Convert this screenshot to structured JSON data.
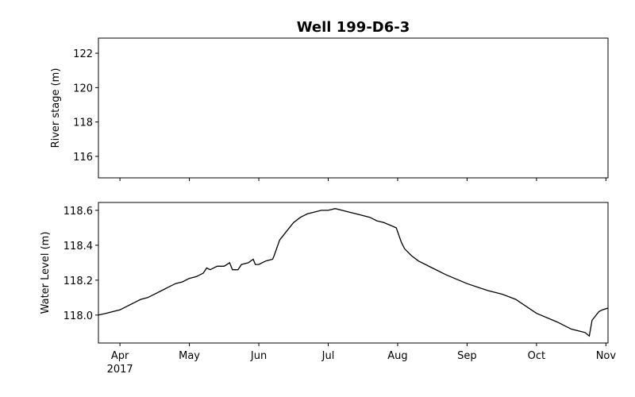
{
  "chart_data": [
    {
      "type": "line",
      "title": "Well 199-D6-3",
      "ylabel": "River stage (m)",
      "xlim": [
        3.69,
        11.03
      ],
      "xticks": [
        4,
        5,
        6,
        7,
        8,
        9,
        10,
        11
      ],
      "ylim": [
        114.75,
        122.88
      ],
      "yticks": [
        116,
        118,
        120,
        122
      ]
    },
    {
      "type": "line",
      "ylabel": "Water Level (m)",
      "color": "#000000",
      "xlim": [
        3.69,
        11.03
      ],
      "xticks": [
        {
          "value": 4,
          "label": "Apr\n2017"
        },
        {
          "value": 5,
          "label": "May"
        },
        {
          "value": 6,
          "label": "Jun"
        },
        {
          "value": 7,
          "label": "Jul"
        },
        {
          "value": 8,
          "label": "Aug"
        },
        {
          "value": 9,
          "label": "Sep"
        },
        {
          "value": 10,
          "label": "Oct"
        },
        {
          "value": 11,
          "label": "Nov"
        }
      ],
      "ylim": [
        117.84,
        118.645
      ],
      "yticks": [
        {
          "value": 118,
          "label": "118.0"
        },
        118.2,
        118.4,
        118.6
      ],
      "x": [
        3.69,
        3.8,
        3.9,
        4.0,
        4.1,
        4.2,
        4.3,
        4.4,
        4.5,
        4.6,
        4.7,
        4.8,
        4.9,
        5.0,
        5.1,
        5.2,
        5.25,
        5.3,
        5.4,
        5.5,
        5.58,
        5.62,
        5.7,
        5.75,
        5.85,
        5.92,
        5.95,
        6.0,
        6.1,
        6.2,
        6.22,
        6.3,
        6.4,
        6.5,
        6.6,
        6.7,
        6.8,
        6.9,
        7.0,
        7.1,
        7.2,
        7.3,
        7.4,
        7.5,
        7.6,
        7.7,
        7.8,
        7.98,
        8.05,
        8.1,
        8.2,
        8.3,
        8.5,
        8.7,
        9.0,
        9.3,
        9.5,
        9.7,
        10.0,
        10.3,
        10.5,
        10.6,
        10.7,
        10.76,
        10.8,
        10.9,
        10.95,
        11.03
      ],
      "values": [
        118.0,
        118.01,
        118.02,
        118.03,
        118.05,
        118.07,
        118.09,
        118.1,
        118.12,
        118.14,
        118.16,
        118.18,
        118.19,
        118.21,
        118.22,
        118.24,
        118.27,
        118.26,
        118.28,
        118.28,
        118.3,
        118.26,
        118.26,
        118.29,
        118.3,
        118.32,
        118.29,
        118.29,
        118.31,
        118.32,
        118.34,
        118.43,
        118.48,
        118.53,
        118.56,
        118.58,
        118.59,
        118.6,
        118.6,
        118.61,
        118.6,
        118.59,
        118.58,
        118.57,
        118.56,
        118.54,
        118.53,
        118.5,
        118.42,
        118.38,
        118.34,
        118.31,
        118.27,
        118.23,
        118.18,
        118.14,
        118.12,
        118.09,
        118.01,
        117.96,
        117.92,
        117.91,
        117.9,
        117.88,
        117.97,
        118.02,
        118.03,
        118.04
      ]
    }
  ]
}
